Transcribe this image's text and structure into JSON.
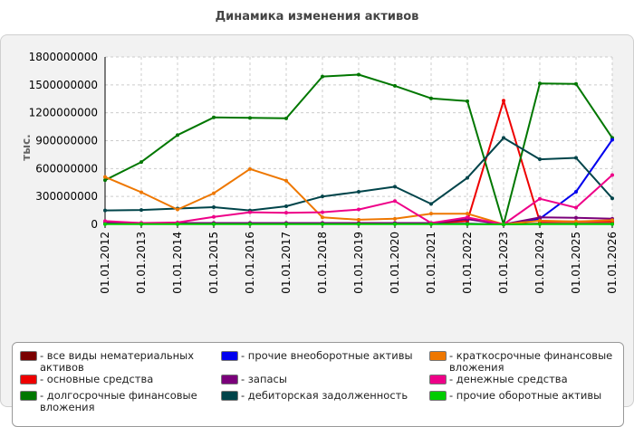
{
  "chart_data": {
    "type": "line",
    "title": "Динамика изменения активов",
    "ylabel": "тыс.",
    "xlabel": "",
    "ylim": [
      0,
      1800000000
    ],
    "yticks": [
      "0",
      "300000000",
      "600000000",
      "900000000",
      "1200000000",
      "1500000000",
      "1800000000"
    ],
    "grid": true,
    "legend_position": "bottom",
    "categories": [
      "01.01.2012",
      "01.01.2013",
      "01.01.2014",
      "01.01.2015",
      "01.01.2016",
      "01.01.2017",
      "01.01.2018",
      "01.01.2019",
      "01.01.2020",
      "01.01.2021",
      "01.01.2022",
      "01.01.2023",
      "01.01.2024",
      "01.01.2025",
      "01.01.2026"
    ],
    "series": [
      {
        "name": "все виды нематериальных активов",
        "color": "#7a0000",
        "values": [
          8000000,
          8000000,
          8000000,
          8000000,
          8000000,
          8000000,
          8000000,
          8000000,
          8000000,
          8000000,
          8000000,
          0,
          8000000,
          8000000,
          8000000
        ]
      },
      {
        "name": "основные средства",
        "color": "#ee0000",
        "values": [
          20000000,
          15000000,
          15000000,
          15000000,
          15000000,
          15000000,
          15000000,
          15000000,
          15000000,
          15000000,
          35000000,
          1330000000,
          30000000,
          30000000,
          30000000
        ]
      },
      {
        "name": "долгосрочные финансовые вложения",
        "color": "#007700",
        "values": [
          475000000,
          670000000,
          960000000,
          1150000000,
          1145000000,
          1140000000,
          1590000000,
          1610000000,
          1490000000,
          1355000000,
          1325000000,
          0,
          1515000000,
          1510000000,
          930000000
        ]
      },
      {
        "name": "прочие внеоборотные активы",
        "color": "#0000ee",
        "values": [
          5000000,
          5000000,
          5000000,
          5000000,
          5000000,
          5000000,
          5000000,
          5000000,
          5000000,
          5000000,
          5000000,
          0,
          60000000,
          350000000,
          910000000
        ]
      },
      {
        "name": "запасы",
        "color": "#7a007a",
        "values": [
          20000000,
          15000000,
          15000000,
          15000000,
          15000000,
          15000000,
          15000000,
          15000000,
          15000000,
          15000000,
          55000000,
          0,
          75000000,
          70000000,
          60000000
        ]
      },
      {
        "name": "дебиторская задолженность",
        "color": "#00444a",
        "values": [
          150000000,
          155000000,
          170000000,
          185000000,
          150000000,
          195000000,
          300000000,
          350000000,
          405000000,
          220000000,
          500000000,
          930000000,
          700000000,
          715000000,
          280000000
        ]
      },
      {
        "name": "краткосрочные финансовые вложения",
        "color": "#ee7700",
        "values": [
          510000000,
          345000000,
          160000000,
          335000000,
          595000000,
          470000000,
          75000000,
          50000000,
          60000000,
          115000000,
          115000000,
          0,
          40000000,
          30000000,
          45000000
        ]
      },
      {
        "name": "денежные средства",
        "color": "#ee0088",
        "values": [
          35000000,
          15000000,
          20000000,
          80000000,
          130000000,
          125000000,
          130000000,
          160000000,
          250000000,
          15000000,
          75000000,
          0,
          275000000,
          180000000,
          530000000
        ]
      },
      {
        "name": "прочие оборотные активы",
        "color": "#00cc00",
        "values": [
          3000000,
          3000000,
          3000000,
          3000000,
          3000000,
          3000000,
          3000000,
          3000000,
          3000000,
          3000000,
          3000000,
          0,
          3000000,
          3000000,
          3000000
        ]
      }
    ]
  }
}
